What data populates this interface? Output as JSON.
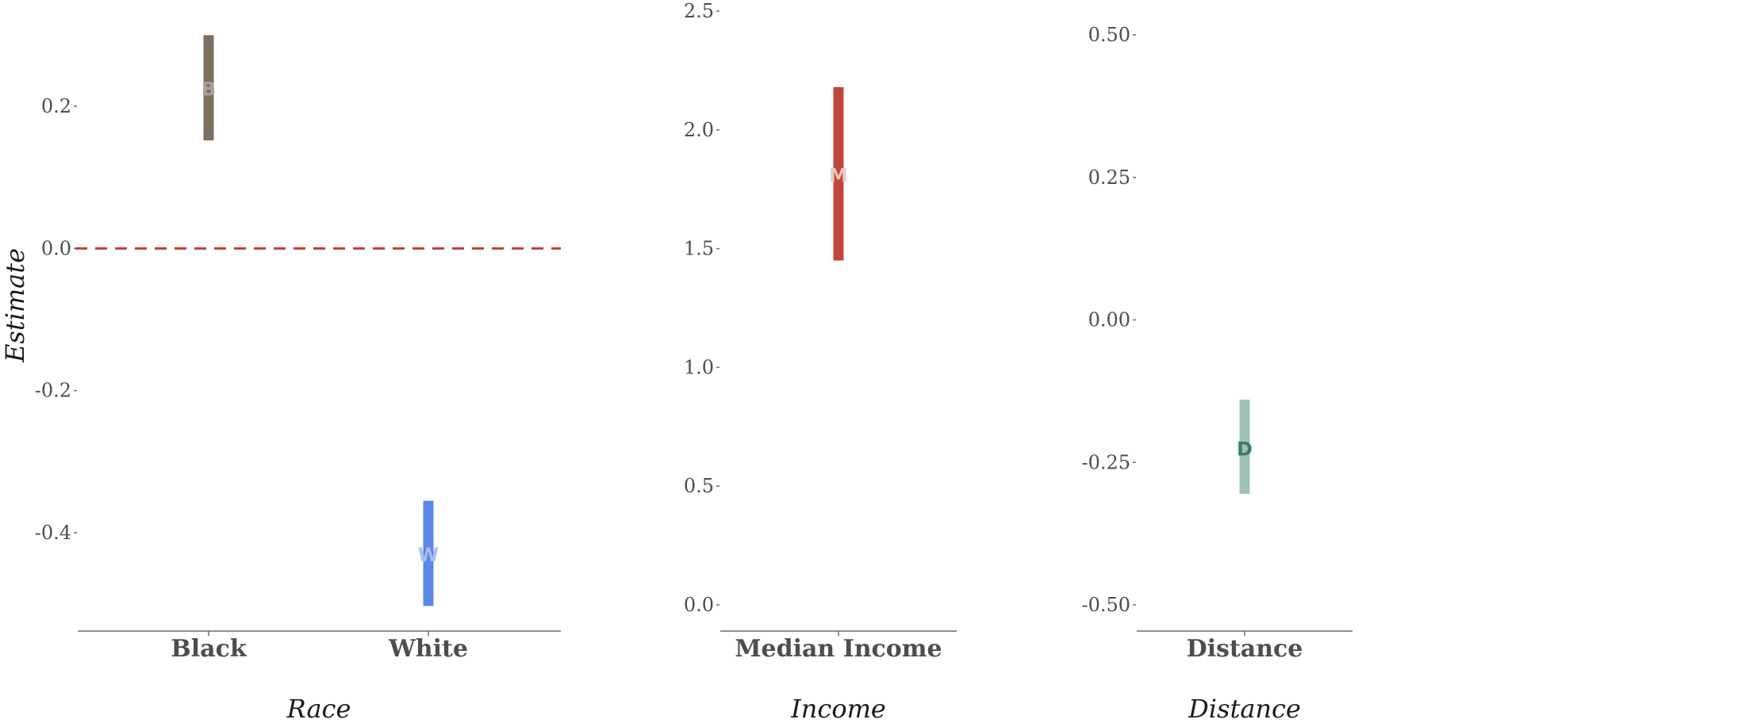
{
  "chart_data": {
    "ylabel": "Estimate",
    "panels": [
      {
        "type": "bar",
        "xlabel": "Race",
        "ylim": [
          -0.54,
          0.3
        ],
        "yticks": [
          "0.2",
          "0.0",
          "-0.2",
          "-0.4"
        ],
        "ytick_values": [
          0.2,
          0.0,
          -0.2,
          -0.4
        ],
        "reference_line": {
          "value": 0,
          "color": "#c93a3a",
          "style": "dashed"
        },
        "categories": [
          "Black",
          "White"
        ],
        "estimates": [
          {
            "category": "Black",
            "letter": "B",
            "estimate": 0.225,
            "low": 0.152,
            "high": 0.3,
            "color": "#7d6e5e",
            "letter_color": "#a8a094"
          },
          {
            "category": "White",
            "letter": "W",
            "estimate": -0.43,
            "low": -0.503,
            "high": -0.355,
            "color": "#5b88e6",
            "letter_color": "#a9c0ee"
          }
        ]
      },
      {
        "type": "bar",
        "xlabel": "Income",
        "ylim": [
          -0.1,
          2.5
        ],
        "yticks": [
          "2.5",
          "2.0",
          "1.5",
          "1.0",
          "0.5",
          "0.0"
        ],
        "ytick_values": [
          2.5,
          2.0,
          1.5,
          1.0,
          0.5,
          0.0
        ],
        "categories": [
          "Median Income"
        ],
        "estimates": [
          {
            "category": "Median Income",
            "letter": "M",
            "estimate": 1.81,
            "low": 1.45,
            "high": 2.18,
            "color": "#c0473d",
            "letter_color": "#f2c9c2"
          }
        ]
      },
      {
        "type": "bar",
        "xlabel": "Distance",
        "ylim": [
          -0.55,
          0.5
        ],
        "yticks": [
          "0.50",
          "0.25",
          "0.00",
          "-0.25",
          "-0.50"
        ],
        "ytick_values": [
          0.5,
          0.25,
          0.0,
          -0.25,
          -0.5
        ],
        "categories": [
          "Distance"
        ],
        "estimates": [
          {
            "category": "Distance",
            "letter": "D",
            "estimate": -0.225,
            "low": -0.305,
            "high": -0.14,
            "color": "#9ec3b3",
            "letter_color": "#3e7c63"
          }
        ]
      }
    ]
  }
}
